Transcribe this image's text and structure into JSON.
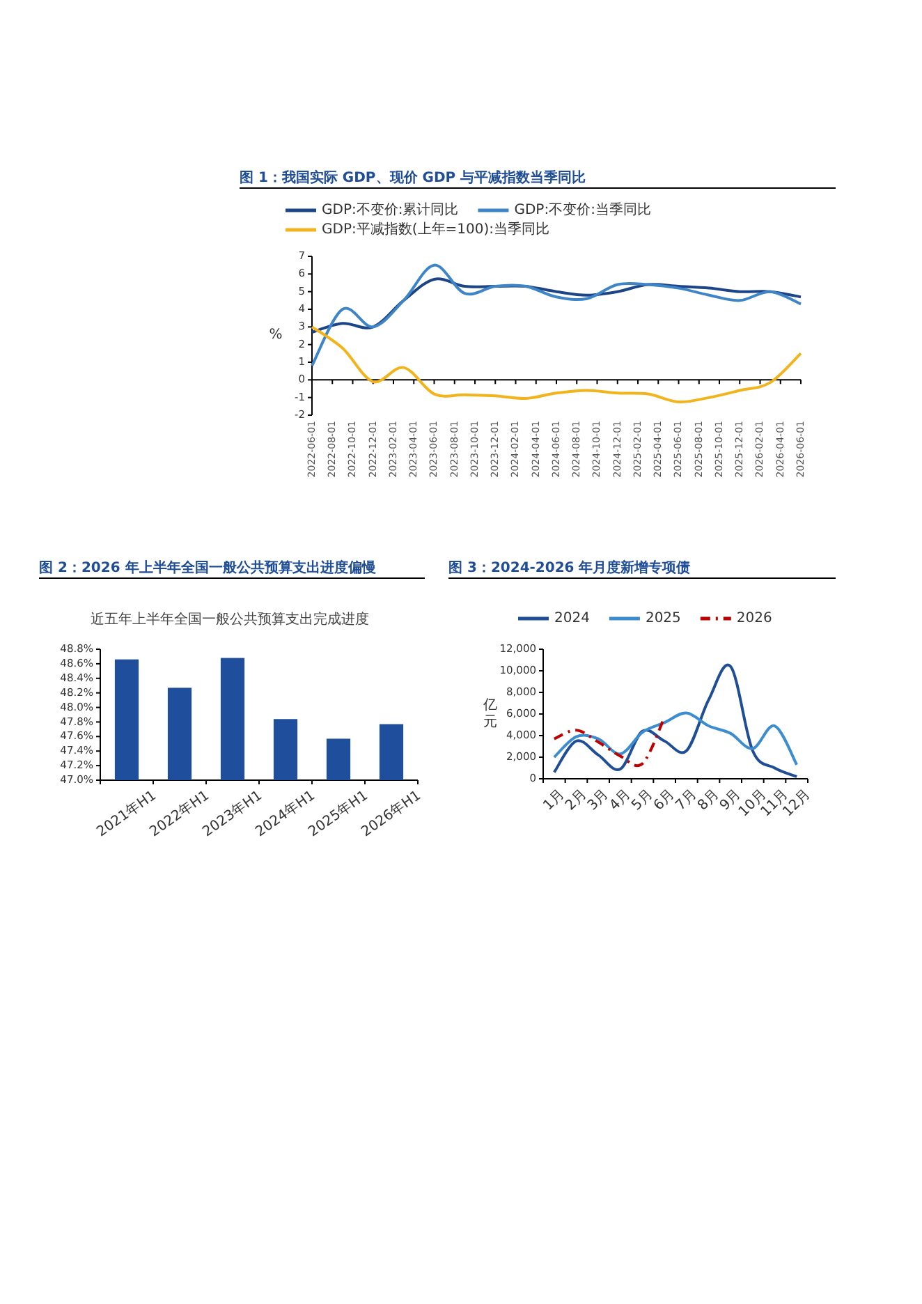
{
  "chart_data": [
    {
      "type": "line",
      "title": "图 1：我国实际 GDP、现价 GDP 与平减指数当季同比",
      "ylabel": "%",
      "legend": "top",
      "x": [
        "2022-06-01",
        "2022-09-01",
        "2022-12-01",
        "2023-03-01",
        "2023-06-01",
        "2023-09-01",
        "2023-12-01",
        "2024-03-01",
        "2024-06-01",
        "2024-09-01",
        "2024-12-01",
        "2025-03-01",
        "2025-06-01",
        "2025-09-01",
        "2025-12-01",
        "2026-03-01",
        "2026-06-01"
      ],
      "series": [
        {
          "name": "GDP:不变价:累计同比",
          "color": "#1c4587",
          "values": [
            2.7,
            3.2,
            3.0,
            4.5,
            5.7,
            5.3,
            5.3,
            5.3,
            5.0,
            4.8,
            5.0,
            5.4,
            5.3,
            5.2,
            5.0,
            5.0,
            4.7
          ]
        },
        {
          "name": "GDP:不变价:当季同比",
          "color": "#3d85c6",
          "values": [
            0.8,
            4.0,
            3.0,
            4.5,
            6.5,
            4.9,
            5.3,
            5.3,
            4.7,
            4.6,
            5.4,
            5.4,
            5.2,
            4.8,
            4.5,
            5.0,
            4.3
          ]
        },
        {
          "name": "GDP:平减指数(上年=100):当季同比",
          "color": "#f1b41c",
          "values": [
            3.0,
            1.8,
            -0.1,
            0.7,
            -0.8,
            -0.85,
            -0.9,
            -1.05,
            -0.75,
            -0.6,
            -0.75,
            -0.8,
            -1.25,
            -1.0,
            -0.6,
            -0.15,
            1.5
          ]
        }
      ],
      "xlim": [
        "2022-06-01",
        "2026-06-01"
      ],
      "xticks": [
        "2022-06-01",
        "2022-08-01",
        "2022-10-01",
        "2022-12-01",
        "2023-02-01",
        "2023-04-01",
        "2023-06-01",
        "2023-08-01",
        "2023-10-01",
        "2023-12-01",
        "2024-02-01",
        "2024-04-01",
        "2024-06-01",
        "2024-08-01",
        "2024-10-01",
        "2024-12-01",
        "2025-02-01",
        "2025-04-01",
        "2025-06-01",
        "2025-08-01",
        "2025-10-01",
        "2025-12-01",
        "2026-02-01",
        "2026-04-01",
        "2026-06-01"
      ],
      "ylim": [
        -2,
        7
      ],
      "yticks": [
        -2,
        -1,
        0,
        1,
        2,
        3,
        4,
        5,
        6,
        7
      ]
    },
    {
      "type": "bar",
      "title": "图 2：2026 年上半年全国一般公共预算支出进度偏慢",
      "subtitle": "近五年上半年全国一般公共预算支出完成进度",
      "categories": [
        "2021年H1",
        "2022年H1",
        "2023年H1",
        "2024年H1",
        "2025年H1",
        "2026年H1"
      ],
      "values": [
        48.66,
        48.27,
        48.68,
        47.84,
        47.57,
        47.77
      ],
      "color": "#1f4e9c",
      "ylim": [
        47.0,
        48.8
      ],
      "yticks": [
        {
          "value": 47.0,
          "label": "47.0%"
        },
        {
          "value": 47.2,
          "label": "47.2%"
        },
        {
          "value": 47.4,
          "label": "47.4%"
        },
        {
          "value": 47.6,
          "label": "47.6%"
        },
        {
          "value": 47.8,
          "label": "47.8%"
        },
        {
          "value": 48.0,
          "label": "48.0%"
        },
        {
          "value": 48.2,
          "label": "48.2%"
        },
        {
          "value": 48.4,
          "label": "48.4%"
        },
        {
          "value": 48.6,
          "label": "48.6%"
        },
        {
          "value": 48.8,
          "label": "48.8%"
        }
      ]
    },
    {
      "type": "line",
      "title": "图 3：2024-2026 年月度新增专项债",
      "ylabel": "亿元",
      "legend": "top",
      "categories": [
        "1月",
        "2月",
        "3月",
        "4月",
        "5月",
        "6月",
        "7月",
        "8月",
        "9月",
        "10月",
        "11月",
        "12月"
      ],
      "series": [
        {
          "name": "2024",
          "color": "#1f4e96",
          "values": [
            600,
            3500,
            2200,
            900,
            4400,
            3500,
            2600,
            7300,
            10400,
            2600,
            1000,
            200
          ]
        },
        {
          "name": "2025",
          "color": "#3c8dd0",
          "values": [
            2000,
            3900,
            3700,
            2300,
            4300,
            5200,
            6100,
            4900,
            4200,
            2800,
            4900,
            1300
          ]
        },
        {
          "name": "2026",
          "color": "#c00000",
          "line_style": "dashed",
          "values": [
            3700,
            4500,
            3400,
            2100,
            1400,
            5700,
            null,
            null,
            null,
            null,
            null,
            null
          ]
        }
      ],
      "ylim": [
        0,
        12000
      ],
      "yticks": [
        0,
        {
          "value": 2000,
          "label": "2,000"
        },
        {
          "value": 4000,
          "label": "4,000"
        },
        {
          "value": 6000,
          "label": "6,000"
        },
        {
          "value": 8000,
          "label": "8,000"
        },
        {
          "value": 10000,
          "label": "10,000"
        },
        {
          "value": 12000,
          "label": "12,000"
        }
      ]
    }
  ]
}
